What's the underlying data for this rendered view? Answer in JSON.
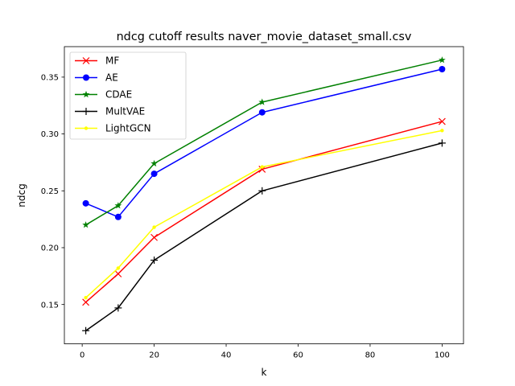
{
  "chart_data": {
    "type": "line",
    "title": "ndcg cutoff results naver_movie_dataset_small.csv",
    "xlabel": "k",
    "ylabel": "ndcg",
    "x": [
      1,
      10,
      20,
      50,
      100
    ],
    "xlim": [
      -4.95,
      105.95
    ],
    "ylim": [
      0.1154,
      0.3768
    ],
    "xticks": [
      0,
      20,
      40,
      60,
      80,
      100
    ],
    "xtick_labels": [
      "0",
      "20",
      "40",
      "60",
      "80",
      "100"
    ],
    "yticks": [
      0.15,
      0.2,
      0.25,
      0.3,
      0.35
    ],
    "ytick_labels": [
      "0.15",
      "0.20",
      "0.25",
      "0.30",
      "0.35"
    ],
    "grid": false,
    "legend_position": "upper-left",
    "series": [
      {
        "name": "MF",
        "color": "#ff0000",
        "marker": "x",
        "values": [
          0.152,
          0.177,
          0.209,
          0.269,
          0.311
        ]
      },
      {
        "name": "AE",
        "color": "#0000ff",
        "marker": "o",
        "values": [
          0.239,
          0.227,
          0.265,
          0.319,
          0.357
        ]
      },
      {
        "name": "CDAE",
        "color": "#008000",
        "marker": "*",
        "values": [
          0.22,
          0.237,
          0.274,
          0.328,
          0.365
        ]
      },
      {
        "name": "MultVAE",
        "color": "#000000",
        "marker": "+",
        "values": [
          0.127,
          0.147,
          0.189,
          0.25,
          0.292
        ]
      },
      {
        "name": "LightGCN",
        "color": "#ffff00",
        "marker": ".",
        "values": [
          0.156,
          0.182,
          0.218,
          0.271,
          0.303
        ]
      }
    ]
  }
}
